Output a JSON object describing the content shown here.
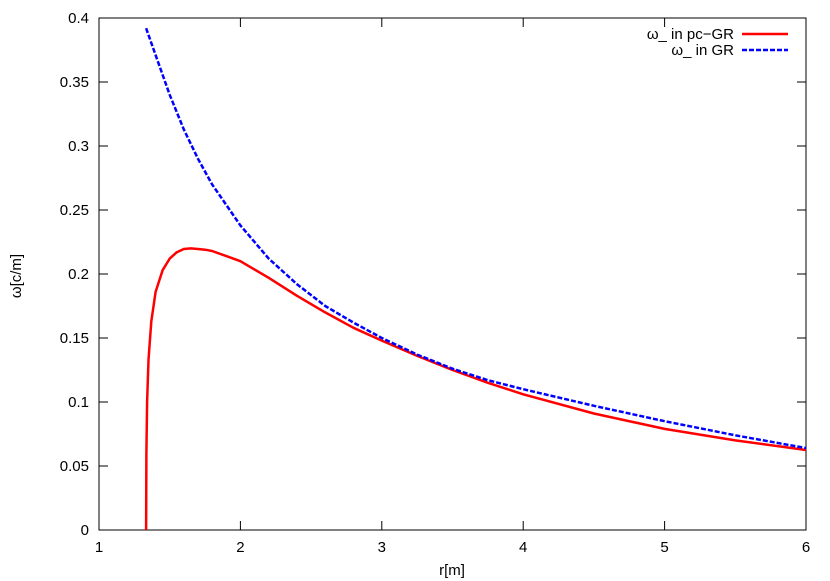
{
  "chart_data": {
    "type": "line",
    "title": "",
    "xlabel": "r[m]",
    "ylabel": "ω[c/m]",
    "xlim": [
      1,
      6
    ],
    "ylim": [
      0,
      0.4
    ],
    "x_ticks": [
      "1",
      "2",
      "3",
      "4",
      "5",
      "6"
    ],
    "y_ticks": [
      "0",
      "0.05",
      "0.1",
      "0.15",
      "0.2",
      "0.25",
      "0.3",
      "0.35",
      "0.4"
    ],
    "grid": false,
    "legend_position": "top-right",
    "series": [
      {
        "name": "ω_ in pc−GR",
        "color": "#ff0000",
        "style": "solid",
        "x": [
          1.333,
          1.335,
          1.34,
          1.35,
          1.37,
          1.4,
          1.45,
          1.5,
          1.55,
          1.6,
          1.65,
          1.7,
          1.75,
          1.8,
          1.9,
          2.0,
          2.2,
          2.4,
          2.6,
          2.8,
          3.0,
          3.25,
          3.5,
          3.75,
          4.0,
          4.5,
          5.0,
          5.5,
          6.0
        ],
        "y": [
          0.0,
          0.06,
          0.1,
          0.133,
          0.163,
          0.186,
          0.203,
          0.212,
          0.217,
          0.2195,
          0.22,
          0.2195,
          0.219,
          0.218,
          0.214,
          0.21,
          0.197,
          0.183,
          0.17,
          0.158,
          0.148,
          0.136,
          0.125,
          0.115,
          0.106,
          0.091,
          0.079,
          0.07,
          0.0625
        ]
      },
      {
        "name": "ω_ in GR",
        "color": "#0000ff",
        "style": "dashed",
        "x": [
          1.333,
          1.4,
          1.5,
          1.6,
          1.7,
          1.8,
          2.0,
          2.2,
          2.4,
          2.6,
          2.8,
          3.0,
          3.25,
          3.5,
          3.75,
          4.0,
          4.5,
          5.0,
          5.5,
          6.0
        ],
        "y": [
          0.392,
          0.371,
          0.34,
          0.313,
          0.29,
          0.27,
          0.238,
          0.212,
          0.192,
          0.175,
          0.162,
          0.15,
          0.137,
          0.126,
          0.117,
          0.11,
          0.097,
          0.085,
          0.074,
          0.064
        ]
      }
    ]
  }
}
